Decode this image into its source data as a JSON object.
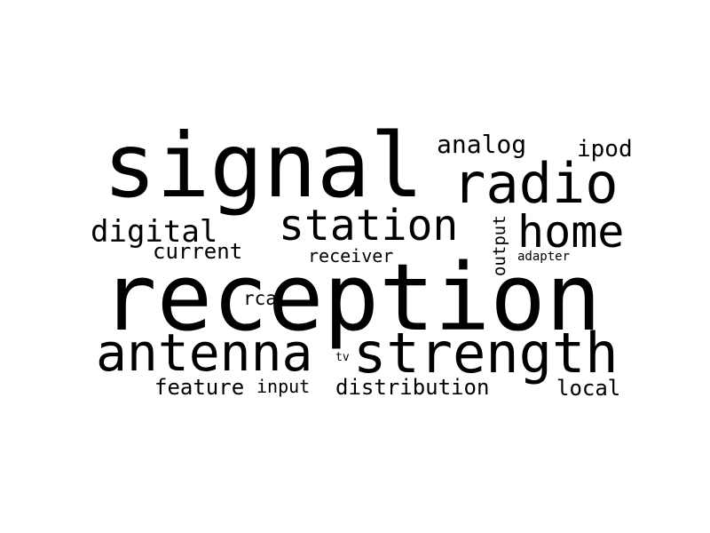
{
  "word_cloud": {
    "words": {
      "signal": "signal",
      "reception": "reception",
      "radio": "radio",
      "station": "station",
      "home": "home",
      "antenna": "antenna",
      "strength": "strength",
      "analog": "analog",
      "ipod": "ipod",
      "digital": "digital",
      "current": "current",
      "receiver": "receiver",
      "output": "output",
      "adapter": "adapter",
      "rca": "rca",
      "tv": "tv",
      "feature": "feature",
      "input": "input",
      "distribution": "distribution",
      "local": "local"
    },
    "colors": {
      "text": "#000000",
      "background": "#ffffff"
    }
  }
}
